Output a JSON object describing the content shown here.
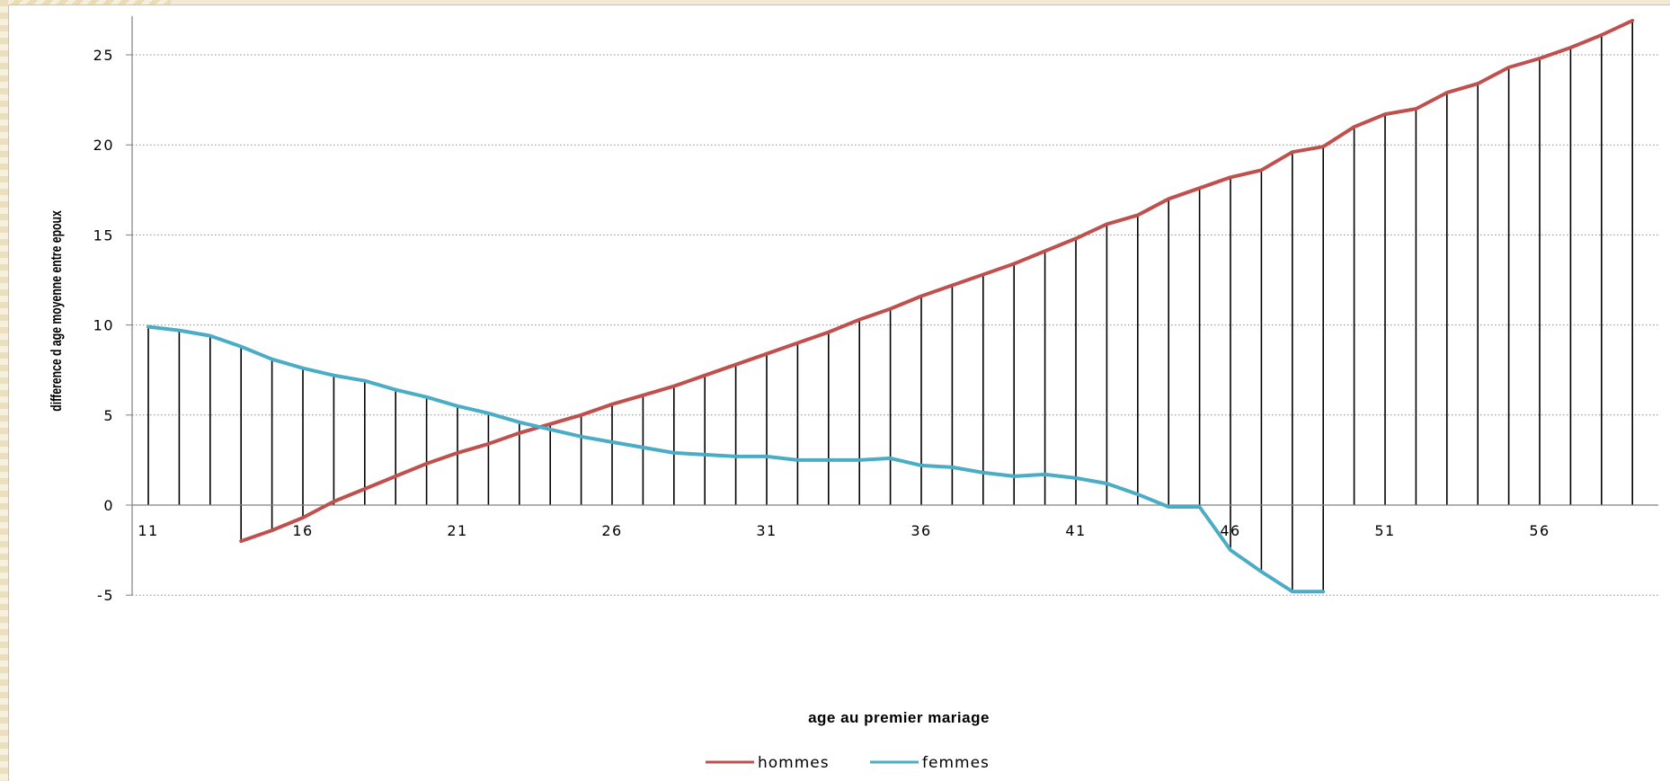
{
  "chart_data": {
    "type": "line",
    "title": "",
    "xlabel": "age au premier mariage",
    "ylabel": "difference d age moyenne entre epoux",
    "ylim": [
      -5,
      27
    ],
    "yticks": [
      -5,
      0,
      5,
      10,
      15,
      20,
      25
    ],
    "xticks": [
      11,
      16,
      21,
      26,
      31,
      36,
      41,
      46,
      51,
      56
    ],
    "grid": true,
    "legend_position": "bottom",
    "drop_lines": true,
    "series": [
      {
        "name": "hommes",
        "color": "#c0504d",
        "x": [
          14,
          15,
          16,
          17,
          18,
          19,
          20,
          21,
          22,
          23,
          24,
          25,
          26,
          27,
          28,
          29,
          30,
          31,
          32,
          33,
          34,
          35,
          36,
          37,
          38,
          39,
          40,
          41,
          42,
          43,
          44,
          45,
          46,
          47,
          48,
          49,
          50,
          51,
          52,
          53,
          54,
          55,
          56,
          57,
          58,
          59
        ],
        "values": [
          -2.0,
          -1.4,
          -0.7,
          0.2,
          0.9,
          1.6,
          2.3,
          2.9,
          3.4,
          4.0,
          4.5,
          5.0,
          5.6,
          6.1,
          6.6,
          7.2,
          7.8,
          8.4,
          9.0,
          9.6,
          10.3,
          10.9,
          11.6,
          12.2,
          12.8,
          13.4,
          14.1,
          14.8,
          15.6,
          16.1,
          17.0,
          17.6,
          18.2,
          18.6,
          19.6,
          19.9,
          21.0,
          21.7,
          22.0,
          22.9,
          23.4,
          24.3,
          24.8,
          25.4,
          26.1,
          26.9
        ]
      },
      {
        "name": "femmes",
        "color": "#4bacc6",
        "x": [
          11,
          12,
          13,
          14,
          15,
          16,
          17,
          18,
          19,
          20,
          21,
          22,
          23,
          24,
          25,
          26,
          27,
          28,
          29,
          30,
          31,
          32,
          33,
          34,
          35,
          36,
          37,
          38,
          39,
          40,
          41,
          42,
          43,
          44,
          45,
          46,
          47,
          48,
          49
        ],
        "values": [
          9.9,
          9.7,
          9.4,
          8.8,
          8.1,
          7.6,
          7.2,
          6.9,
          6.4,
          6.0,
          5.5,
          5.1,
          4.6,
          4.2,
          3.8,
          3.5,
          3.2,
          2.9,
          2.8,
          2.7,
          2.7,
          2.5,
          2.5,
          2.5,
          2.6,
          2.2,
          2.1,
          1.8,
          1.6,
          1.7,
          1.5,
          1.2,
          0.6,
          -0.1,
          -0.1,
          -2.5,
          -3.7,
          -4.8,
          -4.8
        ]
      }
    ]
  }
}
